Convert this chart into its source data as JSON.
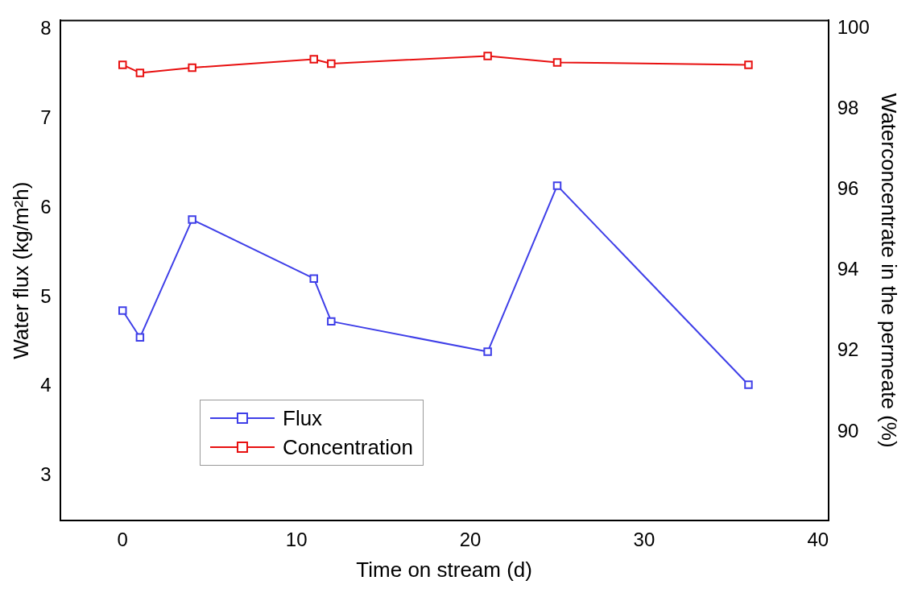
{
  "chart_data": {
    "type": "line",
    "xlabel": "Time on stream (d)",
    "ylabel": "Water flux (kg/m²h)",
    "y2label": "Waterconcentrate in the permeate (%)",
    "x": [
      0,
      1,
      4,
      11,
      12,
      21,
      25,
      36
    ],
    "series": [
      {
        "name": "Flux",
        "color": "#3f3fe8",
        "values": [
          4.85,
          4.55,
          5.87,
          5.21,
          4.73,
          4.39,
          6.25,
          4.02
        ]
      },
      {
        "name": "Concentration",
        "color": "#e81010",
        "axis": "y2",
        "values": [
          99.1,
          98.9,
          99.03,
          99.24,
          99.13,
          99.32,
          99.16,
          99.1
        ]
      }
    ],
    "xlim": [
      -3.6,
      40.6
    ],
    "xticks": [
      0,
      10,
      20,
      30,
      40
    ],
    "ylim": [
      2.5,
      8.1
    ],
    "yticks": [
      3,
      4,
      5,
      6,
      7,
      8
    ],
    "y2lim": [
      87.8,
      100.2
    ],
    "y2ticks": [
      90,
      92,
      94,
      96,
      98,
      100
    ],
    "marker": "square",
    "line_style": "solid",
    "grid": false,
    "legend": "bottom left"
  }
}
